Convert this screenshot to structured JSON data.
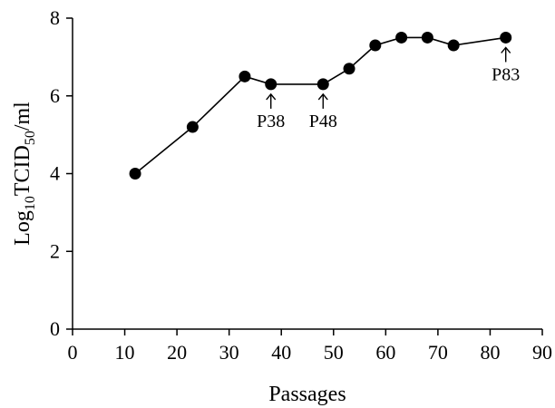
{
  "chart_data": {
    "type": "line",
    "title": "",
    "xlabel": "Passages",
    "ylabel_main": "Log",
    "ylabel_sub1": "10",
    "ylabel_mid": "TCID",
    "ylabel_sub2": "50",
    "ylabel_tail": "/ml",
    "xlim": [
      0,
      90
    ],
    "ylim": [
      0,
      8
    ],
    "x_ticks": [
      0,
      10,
      20,
      30,
      40,
      50,
      60,
      70,
      80,
      90
    ],
    "x_tick_labels": [
      "0",
      "10",
      "20",
      "30",
      "40",
      "50",
      "60",
      "70",
      "80",
      "90"
    ],
    "y_ticks": [
      0,
      2,
      4,
      6,
      8
    ],
    "y_tick_labels": [
      "0",
      "2",
      "4",
      "6",
      "8"
    ],
    "grid": false,
    "series": [
      {
        "x": [
          12,
          23,
          33,
          38,
          48,
          53,
          58,
          63,
          68,
          73,
          83
        ],
        "y": [
          4.0,
          5.2,
          6.5,
          6.3,
          6.3,
          6.7,
          7.3,
          7.5,
          7.5,
          7.3,
          7.5
        ]
      }
    ],
    "annotations": [
      {
        "x": 38,
        "y": 6.3,
        "text": "P38"
      },
      {
        "x": 48,
        "y": 6.3,
        "text": "P48"
      },
      {
        "x": 83,
        "y": 7.5,
        "text": "P83"
      }
    ]
  }
}
